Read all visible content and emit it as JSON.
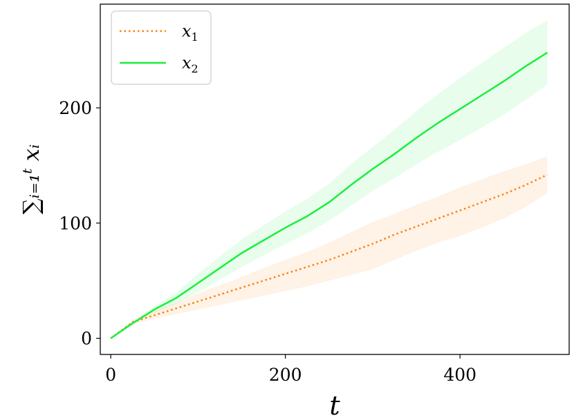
{
  "chart_data": {
    "type": "line",
    "xlabel": "t",
    "ylabel": "∑ᵢ₌₁ᵗ xᵢ",
    "xlim": [
      -12,
      525
    ],
    "ylim": [
      -14,
      290
    ],
    "xticks": [
      0,
      200,
      400
    ],
    "yticks": [
      0,
      100,
      200
    ],
    "grid": false,
    "legend_position": "top-left",
    "series": [
      {
        "name": "x1",
        "name_base": "x",
        "name_sub": "1",
        "color": "#ff7f0e",
        "style": "dotted",
        "x": [
          0,
          25,
          50,
          75,
          100,
          125,
          150,
          175,
          200,
          225,
          250,
          275,
          300,
          325,
          350,
          375,
          400,
          425,
          450,
          475,
          500
        ],
        "y": [
          0,
          14,
          20,
          26,
          32,
          38,
          44,
          50,
          56,
          62,
          68,
          75,
          82,
          90,
          97,
          104,
          111,
          118,
          125,
          133,
          142
        ],
        "lower": [
          0,
          12,
          17,
          21,
          25,
          29,
          33,
          37,
          41,
          45,
          50,
          55,
          60,
          68,
          76,
          83,
          89,
          96,
          104,
          114,
          126
        ],
        "upper": [
          0,
          16,
          24,
          31,
          39,
          46,
          53,
          61,
          68,
          75,
          83,
          92,
          101,
          108,
          116,
          123,
          131,
          138,
          145,
          151,
          158
        ]
      },
      {
        "name": "x2",
        "name_base": "x",
        "name_sub": "2",
        "color": "#1aee3f",
        "style": "solid",
        "x": [
          0,
          25,
          50,
          75,
          100,
          125,
          150,
          175,
          200,
          225,
          250,
          275,
          300,
          325,
          350,
          375,
          400,
          425,
          450,
          475,
          500
        ],
        "y": [
          0,
          13,
          25,
          35,
          48,
          61,
          74,
          85,
          96,
          106,
          118,
          133,
          147,
          160,
          174,
          187,
          199,
          211,
          223,
          236,
          248
        ],
        "lower": [
          0,
          12,
          22,
          30,
          40,
          51,
          62,
          72,
          82,
          91,
          102,
          115,
          128,
          139,
          151,
          162,
          172,
          183,
          194,
          207,
          220
        ],
        "upper": [
          0,
          14,
          28,
          40,
          56,
          71,
          86,
          98,
          110,
          121,
          134,
          151,
          166,
          181,
          197,
          212,
          226,
          239,
          252,
          265,
          276
        ]
      }
    ]
  }
}
